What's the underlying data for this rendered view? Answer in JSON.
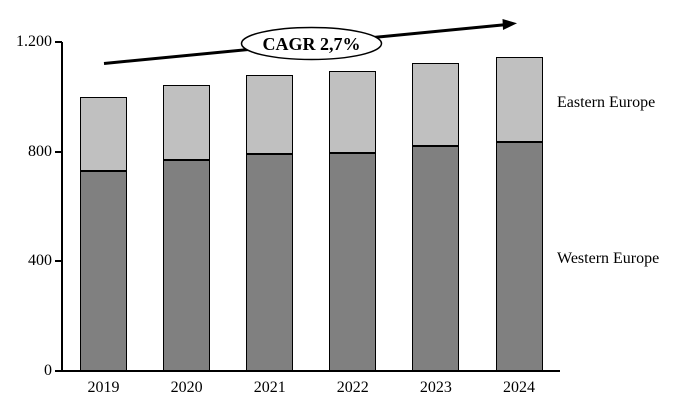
{
  "chart_data": {
    "type": "bar",
    "stacked": true,
    "categories": [
      "2019",
      "2020",
      "2021",
      "2022",
      "2023",
      "2024"
    ],
    "series": [
      {
        "name": "Western Europe",
        "color": "#808080",
        "values": [
          730,
          770,
          790,
          795,
          820,
          835
        ]
      },
      {
        "name": "Eastern Europe",
        "color": "#c0c0c0",
        "values": [
          270,
          275,
          290,
          300,
          305,
          310
        ]
      }
    ],
    "totals": [
      1000,
      1045,
      1080,
      1095,
      1125,
      1145
    ],
    "ylim": [
      0,
      1200
    ],
    "yticks": [
      {
        "value": 0,
        "label": "0"
      },
      {
        "value": 400,
        "label": "400"
      },
      {
        "value": 800,
        "label": "800"
      },
      {
        "value": 1200,
        "label": "1.200"
      }
    ],
    "annotation": "CAGR 2,7%",
    "grid": false,
    "legend_position": "right-side-labels",
    "bar_border_color": "#000000",
    "axis_color": "#000000",
    "background_color": "#ffffff"
  }
}
